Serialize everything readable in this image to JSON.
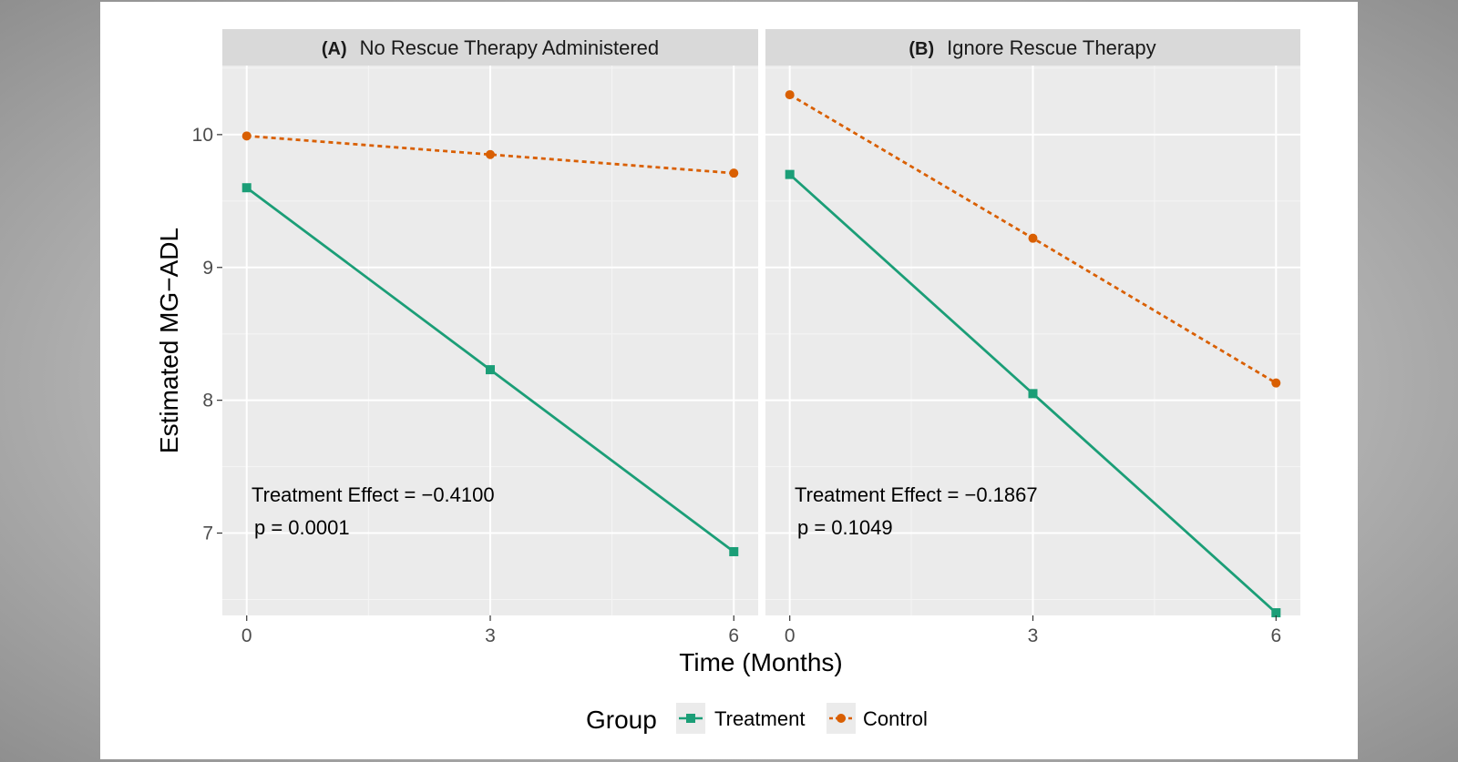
{
  "chart_data": {
    "type": "line",
    "ylabel": "Estimated MG−ADL",
    "xlabel": "Time (Months)",
    "x_ticks": [
      "0",
      "3",
      "6"
    ],
    "y_ticks": [
      "7",
      "8",
      "9",
      "10"
    ],
    "x": [
      0,
      3,
      6
    ],
    "xlim": [
      -0.3,
      6.3
    ],
    "ylim": [
      6.38,
      10.52
    ],
    "grid": true,
    "legend": {
      "title": "Group",
      "position": "bottom",
      "entries": [
        {
          "name": "Treatment",
          "color": "#1b9e77",
          "marker": "square",
          "line": "solid"
        },
        {
          "name": "Control",
          "color": "#d95f02",
          "marker": "circle",
          "line": "dashed"
        }
      ]
    },
    "panels": [
      {
        "tag": "(A)",
        "title": "No Rescue Therapy Administered",
        "annotation_line1": "Treatment Effect = −0.4100",
        "annotation_line2": "p = 0.0001",
        "series": [
          {
            "name": "Treatment",
            "values": [
              9.6,
              8.23,
              6.86
            ]
          },
          {
            "name": "Control",
            "values": [
              9.99,
              9.85,
              9.71
            ]
          }
        ]
      },
      {
        "tag": "(B)",
        "title": "Ignore Rescue Therapy",
        "annotation_line1": "Treatment Effect = −0.1867",
        "annotation_line2": "p = 0.1049",
        "series": [
          {
            "name": "Treatment",
            "values": [
              9.7,
              8.05,
              6.4
            ]
          },
          {
            "name": "Control",
            "values": [
              10.3,
              9.22,
              8.13
            ]
          }
        ]
      }
    ]
  }
}
